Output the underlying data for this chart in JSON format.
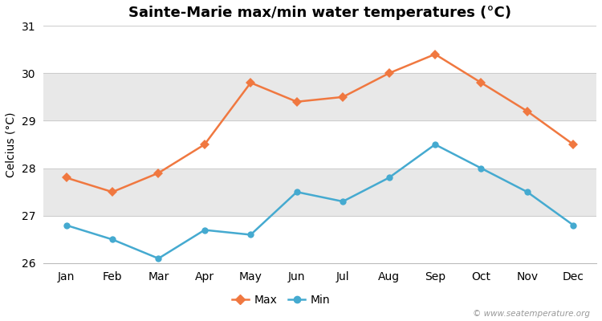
{
  "title": "Sainte-Marie max/min water temperatures (°C)",
  "ylabel": "Celcius (°C)",
  "months": [
    "Jan",
    "Feb",
    "Mar",
    "Apr",
    "May",
    "Jun",
    "Jul",
    "Aug",
    "Sep",
    "Oct",
    "Nov",
    "Dec"
  ],
  "max_values": [
    27.8,
    27.5,
    27.9,
    28.5,
    29.8,
    29.4,
    29.5,
    30.0,
    30.4,
    29.8,
    29.2,
    28.5
  ],
  "min_values": [
    26.8,
    26.5,
    26.1,
    26.7,
    26.6,
    27.5,
    27.3,
    27.8,
    28.5,
    28.0,
    27.5,
    26.8
  ],
  "max_color": "#f07840",
  "min_color": "#45aad0",
  "bg_color": "#ffffff",
  "plot_bg_color": "#ffffff",
  "band_color": "#e8e8e8",
  "ylim": [
    26.0,
    31.0
  ],
  "yticks": [
    26,
    27,
    28,
    29,
    30,
    31
  ],
  "watermark": "© www.seatemperature.org",
  "legend_max": "Max",
  "legend_min": "Min",
  "title_fontsize": 13,
  "axis_fontsize": 10,
  "watermark_fontsize": 7.5
}
